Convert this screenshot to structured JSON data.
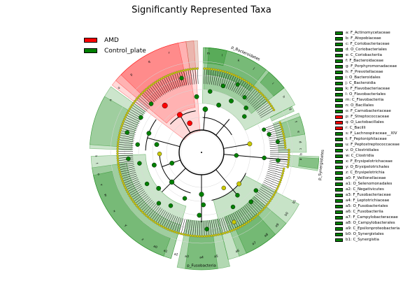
{
  "title": "Significantly Represented Taxa",
  "colors": {
    "AMD": "#ff0000",
    "Control_plate": "#007f00",
    "neutral_node": "#c8c800"
  },
  "legend": [
    {
      "label": "AMD",
      "color": "#ff0000"
    },
    {
      "label": "Control_plate",
      "color": "#007f00"
    }
  ],
  "chart_data": {
    "type": "cladogram",
    "title": "Significantly Represented Taxa",
    "groups": [
      "AMD",
      "Control_plate"
    ],
    "clade_labels": [
      {
        "text": "p_Bacteroidetes",
        "group": "Control_plate"
      },
      {
        "text": "p_Fusobacteria",
        "group": "Control_plate"
      },
      {
        "text": "p_Synergistetes",
        "group": "Control_plate"
      }
    ],
    "wedge_letters": [
      "m",
      "l",
      "k",
      "j",
      "i",
      "h",
      "g",
      "f",
      "e",
      "d",
      "c",
      "b",
      "a",
      "n",
      "o",
      "p",
      "q",
      "r",
      "s",
      "t",
      "u",
      "v",
      "w",
      "x",
      "y",
      "z",
      "a0",
      "a1",
      "a2",
      "a3",
      "a4",
      "a5",
      "a6",
      "a7",
      "a8",
      "a9",
      "b0",
      "b1"
    ],
    "taxa": [
      {
        "id": "a",
        "name": "F_Actinomycetaceae",
        "group": "Control_plate"
      },
      {
        "id": "b",
        "name": "F_Atopobiaceae",
        "group": "Control_plate"
      },
      {
        "id": "c",
        "name": "F_Coriobacteriaceae",
        "group": "Control_plate"
      },
      {
        "id": "d",
        "name": "O_Coriobacteriales",
        "group": "Control_plate"
      },
      {
        "id": "e",
        "name": "C_Coriobacteriia",
        "group": "Control_plate"
      },
      {
        "id": "f",
        "name": "F_Bacteroidaceae",
        "group": "Control_plate"
      },
      {
        "id": "g",
        "name": "F_Porphyromonadaceae",
        "group": "Control_plate"
      },
      {
        "id": "h",
        "name": "F_Prevotellaceae",
        "group": "Control_plate"
      },
      {
        "id": "i",
        "name": "O_Bacteroidales",
        "group": "Control_plate"
      },
      {
        "id": "j",
        "name": "C_Bacteroidia",
        "group": "Control_plate"
      },
      {
        "id": "k",
        "name": "F_Flavobacteriaceae",
        "group": "Control_plate"
      },
      {
        "id": "l",
        "name": "O_Flavobacteriales",
        "group": "Control_plate"
      },
      {
        "id": "m",
        "name": "C_Flavobacteriia",
        "group": "Control_plate"
      },
      {
        "id": "n",
        "name": "O_Bacillales",
        "group": "Control_plate"
      },
      {
        "id": "o",
        "name": "F_Carnobacteriaceae",
        "group": "Control_plate"
      },
      {
        "id": "p",
        "name": "F_Streptococcaceae",
        "group": "AMD"
      },
      {
        "id": "q",
        "name": "O_Lactobacillales",
        "group": "AMD"
      },
      {
        "id": "r",
        "name": "C_Bacilli",
        "group": "AMD"
      },
      {
        "id": "s",
        "name": "F_Lachnospiraceae__XIV",
        "group": "Control_plate"
      },
      {
        "id": "t",
        "name": "F_Peptoniphilaceae",
        "group": "Control_plate"
      },
      {
        "id": "u",
        "name": "F_Peptostreptococcaceae",
        "group": "Control_plate"
      },
      {
        "id": "v",
        "name": "O_Clostridiales",
        "group": "Control_plate"
      },
      {
        "id": "w",
        "name": "C_Clostridia",
        "group": "Control_plate"
      },
      {
        "id": "x",
        "name": "F_Erysipelotrichaceae",
        "group": "Control_plate"
      },
      {
        "id": "y",
        "name": "O_Erysipelotrichales",
        "group": "Control_plate"
      },
      {
        "id": "z",
        "name": "C_Erysipelotrichia",
        "group": "Control_plate"
      },
      {
        "id": "a0",
        "name": "F_Veillonellaceae",
        "group": "Control_plate"
      },
      {
        "id": "a1",
        "name": "O_Selenomonadales",
        "group": "Control_plate"
      },
      {
        "id": "a2",
        "name": "C_Negativicutes",
        "group": "Control_plate"
      },
      {
        "id": "a3",
        "name": "F_Fusobacteriaceae",
        "group": "Control_plate"
      },
      {
        "id": "a4",
        "name": "F_Leptotrichiaceae",
        "group": "Control_plate"
      },
      {
        "id": "a5",
        "name": "O_Fusobacteriales",
        "group": "Control_plate"
      },
      {
        "id": "a6",
        "name": "C_Fusobacteriia",
        "group": "Control_plate"
      },
      {
        "id": "a7",
        "name": "F_Campylobacteraceae",
        "group": "Control_plate"
      },
      {
        "id": "a8",
        "name": "O_Campylobacterales",
        "group": "Control_plate"
      },
      {
        "id": "a9",
        "name": "C_Epsilonproteobacteria",
        "group": "Control_plate"
      },
      {
        "id": "b0",
        "name": "O_Synergistales",
        "group": "Control_plate"
      },
      {
        "id": "b1",
        "name": "C_Synergistia",
        "group": "Control_plate"
      }
    ]
  }
}
